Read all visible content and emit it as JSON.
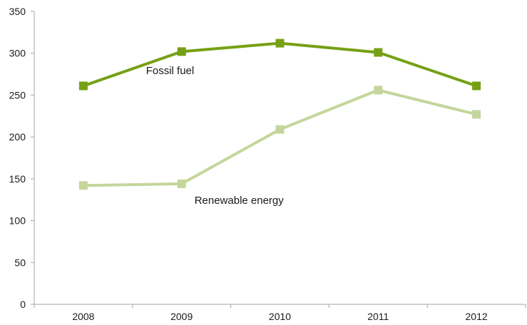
{
  "chart_data": {
    "type": "line",
    "title": "",
    "xlabel": "",
    "ylabel": "",
    "categories": [
      "2008",
      "2009",
      "2010",
      "2011",
      "2012"
    ],
    "ylim": [
      0,
      350
    ],
    "yticks": [
      "0",
      "50",
      "100",
      "150",
      "200",
      "250",
      "300",
      "350"
    ],
    "grid": false,
    "legend": "none",
    "series": [
      {
        "name": "Fossil fuel",
        "values": [
          261,
          302,
          312,
          301,
          261
        ],
        "color": "#76a014",
        "marker": "square"
      },
      {
        "name": "Renewable energy",
        "values": [
          142,
          144,
          209,
          256,
          227
        ],
        "color": "#c4d69b",
        "marker": "square"
      }
    ]
  }
}
